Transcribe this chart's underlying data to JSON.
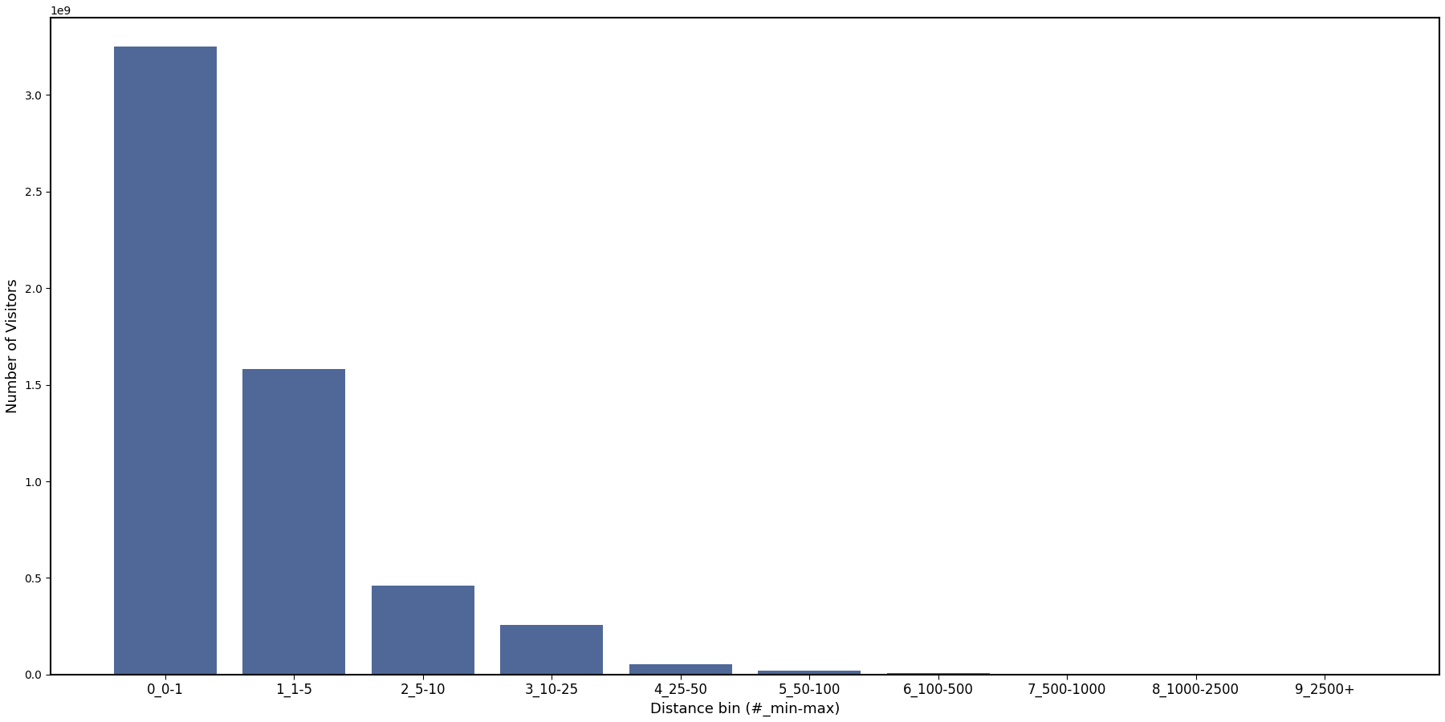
{
  "categories": [
    "0_0-1",
    "1_1-5",
    "2_5-10",
    "3_10-25",
    "4_25-50",
    "5_50-100",
    "6_100-500",
    "7_500-1000",
    "8_1000-2500",
    "9_2500+"
  ],
  "values": [
    3250000000.0,
    1580000000.0,
    460000000.0,
    255000000.0,
    52000000.0,
    22000000.0,
    8000000.0,
    5000000.0,
    1000000.0,
    500000.0
  ],
  "bar_color": "#4f6898",
  "xlabel": "Distance bin (#_min-max)",
  "ylabel": "Number of Visitors",
  "yticks": [
    0.0,
    500000000.0,
    1000000000.0,
    1500000000.0,
    2000000000.0,
    2500000000.0,
    3000000000.0
  ],
  "ylim": [
    0,
    3400000000.0
  ],
  "background_color": "#ffffff",
  "figsize": [
    18.0,
    9.0
  ],
  "dpi": 100
}
